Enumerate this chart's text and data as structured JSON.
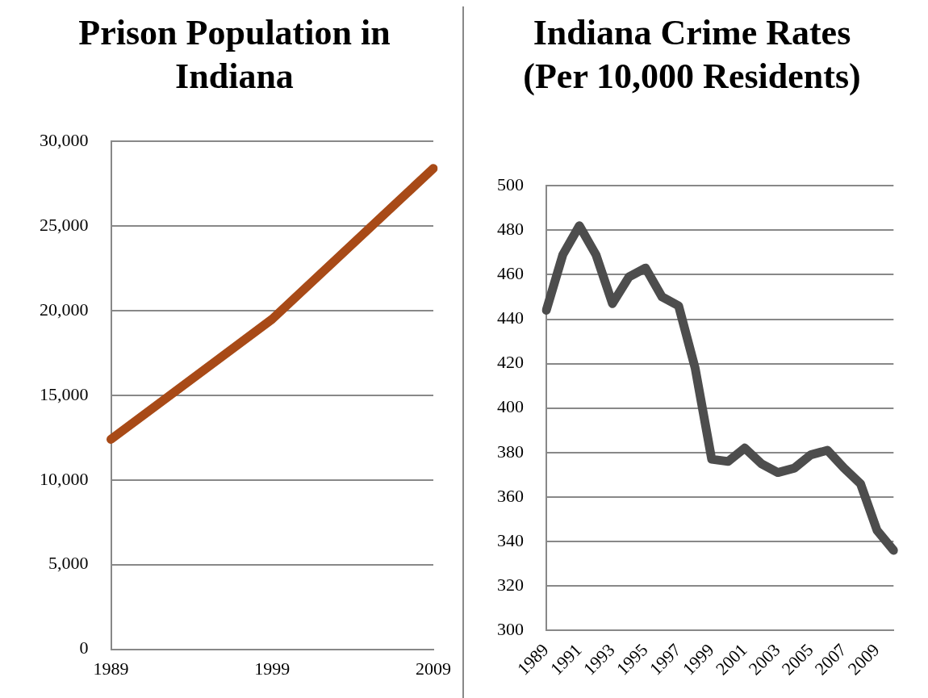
{
  "chart_data": [
    {
      "type": "line",
      "title": "Prison Population in Indiana",
      "categories": [
        "1989",
        "1999",
        "2009"
      ],
      "series": [
        {
          "color": "#a84a17",
          "values": [
            12400,
            19500,
            28400
          ]
        }
      ],
      "ylim": [
        0,
        30000
      ],
      "yticks": [
        {
          "value": 0,
          "label": "0"
        },
        {
          "value": 5000,
          "label": "5,000"
        },
        {
          "value": 10000,
          "label": "10,000"
        },
        {
          "value": 15000,
          "label": "15,000"
        },
        {
          "value": 20000,
          "label": "20,000"
        },
        {
          "value": 25000,
          "label": "25,000"
        },
        {
          "value": 30000,
          "label": "30,000"
        }
      ],
      "grid": "y",
      "legend": false,
      "marker": "none"
    },
    {
      "type": "line",
      "title": "Indiana Crime Rates (Per 10,000 Residents)",
      "categories": [
        "1989",
        null,
        "1991",
        null,
        "1993",
        null,
        "1995",
        null,
        "1997",
        null,
        "1999",
        null,
        "2001",
        null,
        "2003",
        null,
        "2005",
        null,
        "2007",
        null,
        "2009",
        null
      ],
      "series": [
        {
          "color": "#4d4d4d",
          "values": [
            444,
            469,
            482,
            469,
            447,
            459,
            463,
            450,
            446,
            418,
            377,
            376,
            382,
            375,
            371,
            373,
            379,
            381,
            373,
            366,
            345,
            336
          ]
        }
      ],
      "ylim": [
        300,
        500
      ],
      "yticks": [
        300,
        320,
        340,
        360,
        380,
        400,
        420,
        440,
        460,
        480,
        500
      ],
      "grid": "y",
      "legend": false,
      "marker": "none"
    }
  ]
}
